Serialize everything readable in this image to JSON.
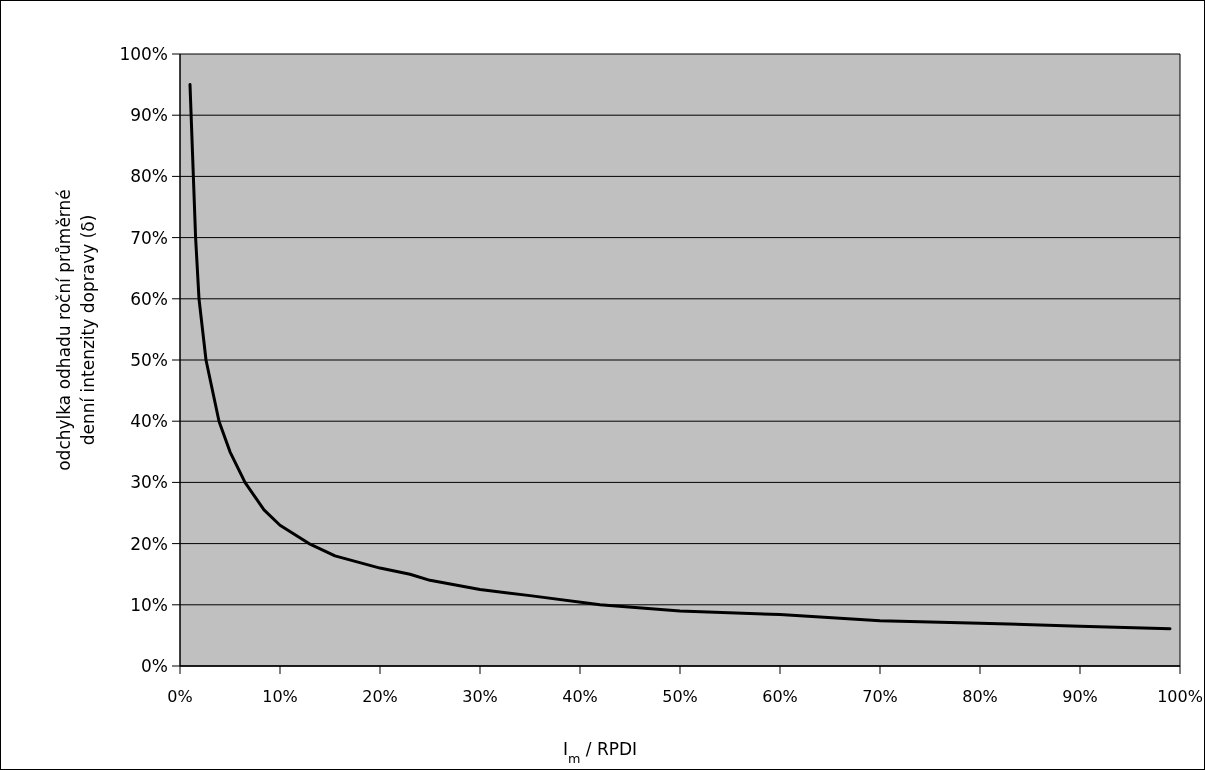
{
  "chart_data": {
    "type": "line",
    "xlabel": "I$_{m}$ / RPDI",
    "ylabel": "odchylka odhadu roční průměrné denní intenzity dopravy (δ)",
    "x": [
      1,
      1.56,
      1.9,
      2.6,
      3.9,
      5,
      6.5,
      8.4,
      10,
      12.9,
      15.5,
      20,
      23,
      25,
      30,
      35,
      42,
      50,
      60,
      70,
      80,
      90,
      99
    ],
    "series": [
      {
        "color": "#000000",
        "values": [
          95,
          70,
          60,
          50,
          40,
          35,
          30,
          25.5,
          23,
          20,
          18,
          16,
          15,
          14,
          12.5,
          11.5,
          10,
          9,
          8.4,
          7.4,
          7,
          6.5,
          6.1
        ]
      }
    ],
    "xlim": [
      0,
      100
    ],
    "ylim": [
      0,
      100
    ],
    "xticks": [
      {
        "value": 0,
        "label": "0%"
      },
      {
        "value": 10,
        "label": "10%"
      },
      {
        "value": 20,
        "label": "20%"
      },
      {
        "value": 30,
        "label": "30%"
      },
      {
        "value": 40,
        "label": "40%"
      },
      {
        "value": 50,
        "label": "50%"
      },
      {
        "value": 60,
        "label": "60%"
      },
      {
        "value": 70,
        "label": "70%"
      },
      {
        "value": 80,
        "label": "80%"
      },
      {
        "value": 90,
        "label": "90%"
      },
      {
        "value": 100,
        "label": "100%"
      }
    ],
    "yticks": [
      {
        "value": 0,
        "label": "0%"
      },
      {
        "value": 10,
        "label": "10%"
      },
      {
        "value": 20,
        "label": "20%"
      },
      {
        "value": 30,
        "label": "30%"
      },
      {
        "value": 40,
        "label": "40%"
      },
      {
        "value": 50,
        "label": "50%"
      },
      {
        "value": 60,
        "label": "60%"
      },
      {
        "value": 70,
        "label": "70%"
      },
      {
        "value": 80,
        "label": "80%"
      },
      {
        "value": 90,
        "label": "90%"
      },
      {
        "value": 100,
        "label": "100%"
      }
    ],
    "grid": "y",
    "marker": "none",
    "line_style": "solid"
  }
}
